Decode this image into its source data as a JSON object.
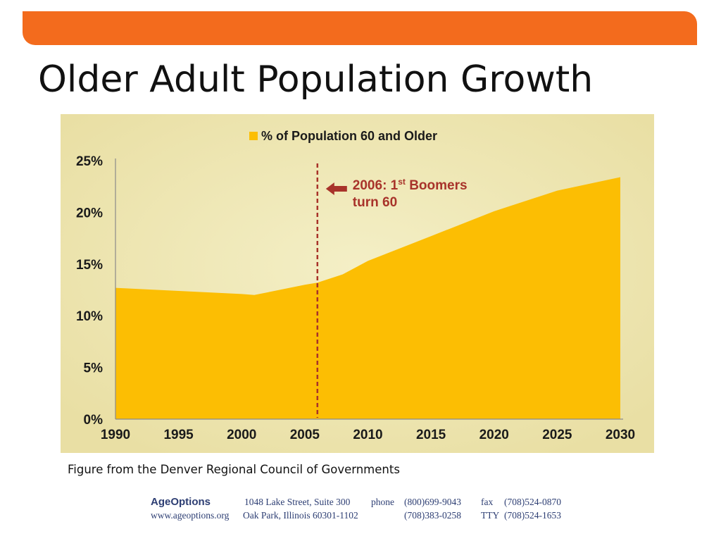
{
  "slide": {
    "title": "Older Adult Population Growth",
    "caption": "Figure from the Denver Regional Council of Governments",
    "colors": {
      "top_band": "#f36b1d",
      "chart_background": "#e9dfa4",
      "area_fill": "#fcbe03",
      "legend_square": "#fcbe03",
      "marker_line": "#a8332a",
      "annotation_text": "#a8332a",
      "footer_text": "#2d3e73"
    }
  },
  "chart_data": {
    "type": "area",
    "legend": [
      "% of Population 60 and Older"
    ],
    "legend_position": "top-center",
    "x": [
      1990,
      1995,
      2000,
      2001,
      2005,
      2006,
      2008,
      2010,
      2015,
      2020,
      2025,
      2030
    ],
    "series": [
      {
        "name": "% of Population 60 and Older",
        "values": [
          12.7,
          12.4,
          12.1,
          12.0,
          13.0,
          13.2,
          14.0,
          15.3,
          17.7,
          20.1,
          22.1,
          23.4
        ]
      }
    ],
    "x_ticks": [
      "1990",
      "1995",
      "2000",
      "2005",
      "2010",
      "2015",
      "2020",
      "2025",
      "2030"
    ],
    "y_ticks": [
      "0%",
      "5%",
      "10%",
      "15%",
      "20%",
      "25%"
    ],
    "xlim": [
      1990,
      2030
    ],
    "ylim": [
      0,
      25
    ],
    "grid": false,
    "marker": {
      "x": 2006,
      "style": "dashed"
    },
    "annotation": {
      "prefix": "2006: 1",
      "superscript": "st",
      "suffix": " Boomers",
      "line2": "turn 60"
    }
  },
  "footer": {
    "brand": "AgeOptions",
    "address_line1": "1048 Lake Street, Suite 300",
    "address_line2": "Oak Park, Illinois 60301-1102",
    "website": "www.ageoptions.org",
    "phone_label": "phone",
    "phone1": "(800)699-9043",
    "phone2": "(708)383-0258",
    "fax_label": "fax",
    "fax": "(708)524-0870",
    "tty_label": "TTY",
    "tty": "(708)524-1653"
  }
}
